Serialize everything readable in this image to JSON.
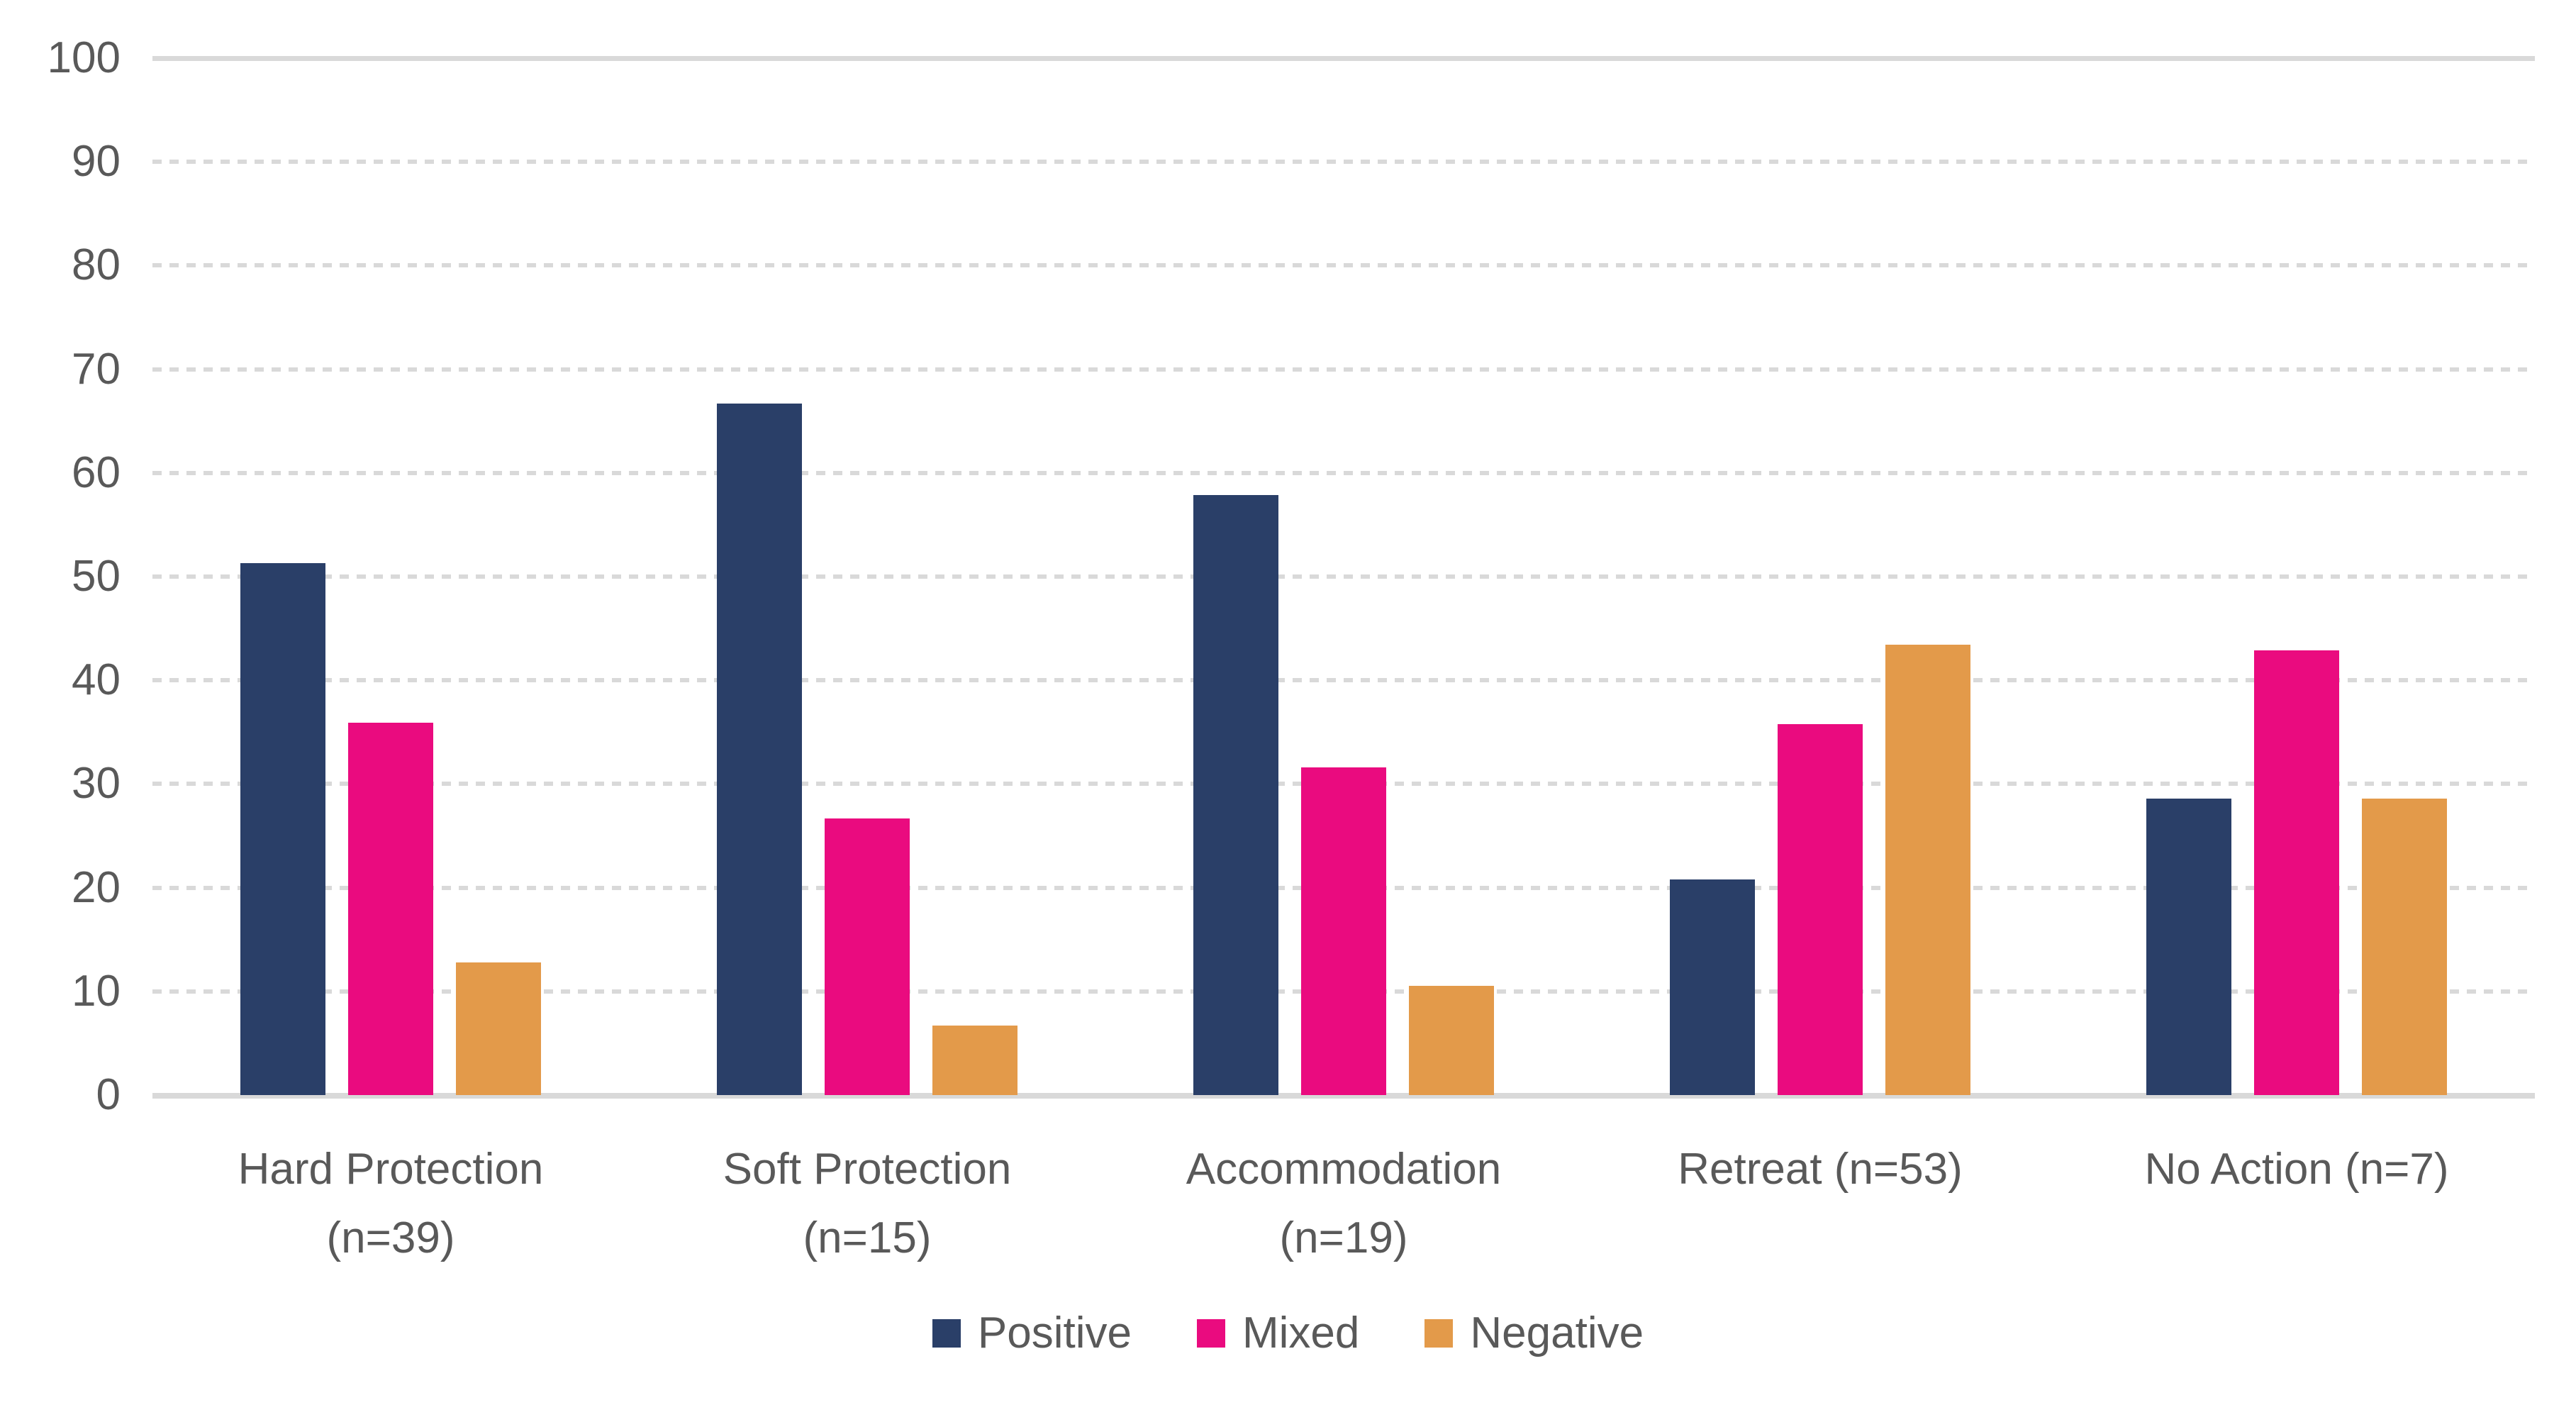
{
  "chart_data": {
    "type": "bar",
    "title": "",
    "xlabel": "",
    "ylabel": "",
    "categories": [
      "Hard Protection\n(n=39)",
      "Soft Protection\n(n=15)",
      "Accommodation\n(n=19)",
      "Retreat (n=53)",
      "No Action (n=7)"
    ],
    "series": [
      {
        "name": "Positive",
        "color": "#2a3f68",
        "values": [
          51.3,
          66.7,
          57.9,
          20.8,
          28.6
        ]
      },
      {
        "name": "Mixed",
        "color": "#ea0b7f",
        "values": [
          35.9,
          26.7,
          31.6,
          35.8,
          42.9
        ]
      },
      {
        "name": "Negative",
        "color": "#e39a4a",
        "values": [
          12.8,
          6.7,
          10.5,
          43.4,
          28.6
        ]
      }
    ],
    "ylim": [
      0,
      100
    ],
    "yticks": [
      0,
      10,
      20,
      30,
      40,
      50,
      60,
      70,
      80,
      90,
      100
    ],
    "grid": "horizontal, dashed light gray, solid top line and solid baseline",
    "legend_position": "bottom-center"
  },
  "colors": {
    "gridline": "#d9d9d9",
    "axis_line": "#d9d9d9",
    "label_text": "#595959",
    "background": "#ffffff"
  }
}
